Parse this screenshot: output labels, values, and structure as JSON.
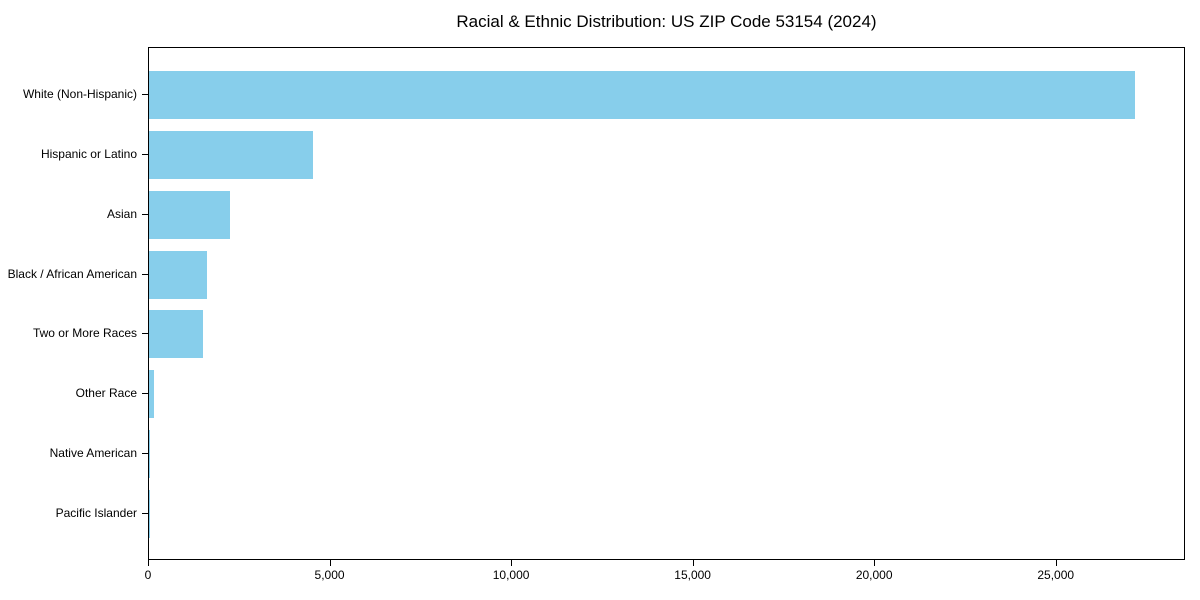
{
  "title": "Racial & Ethnic Distribution: US ZIP Code 53154 (2024)",
  "chart_data": {
    "type": "bar",
    "orientation": "horizontal",
    "title": "Racial & Ethnic Distribution: US ZIP Code 53154 (2024)",
    "categories": [
      "White (Non-Hispanic)",
      "Hispanic or Latino",
      "Asian",
      "Black / African American",
      "Two or More Races",
      "Other Race",
      "Native American",
      "Pacific Islander"
    ],
    "values": [
      27200,
      4520,
      2240,
      1610,
      1490,
      125,
      40,
      10
    ],
    "xlabel": "",
    "ylabel": "",
    "xlim": [
      0,
      28560
    ],
    "x_ticks": [
      0,
      5000,
      10000,
      15000,
      20000,
      25000
    ],
    "x_tick_labels": [
      "0",
      "5,000",
      "10,000",
      "15,000",
      "20,000",
      "25,000"
    ],
    "bar_color": "#87CEEB",
    "background_color": "#FFFFFF",
    "spine_color": "#000000",
    "grid": false,
    "legend": null
  }
}
